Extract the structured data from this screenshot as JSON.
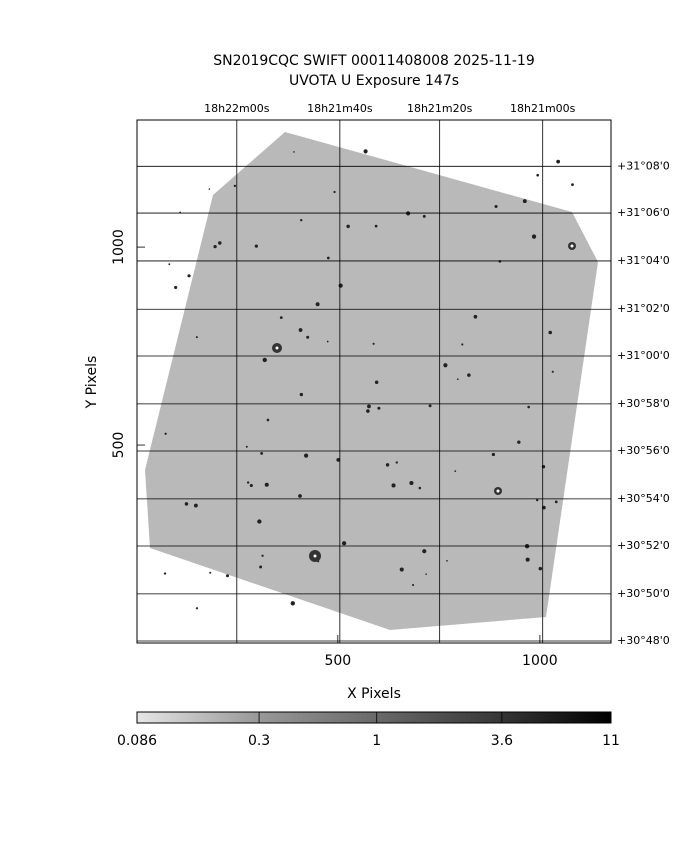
{
  "chart_data": {
    "type": "image",
    "title": "SN2019CQC SWIFT 00011408008 2025-11-19",
    "subtitle": "UVOTA U Exposure        147s",
    "x_label": "X Pixels",
    "y_label": "Y Pixels",
    "xlim": [
      3,
      1176
    ],
    "ylim": [
      0,
      1321
    ],
    "xticks": [
      500,
      1000
    ],
    "yticks": [
      500,
      1000
    ],
    "top_ticks": [
      {
        "value": 250,
        "label": "18h22m00s"
      },
      {
        "value": 505,
        "label": "18h21m40s"
      },
      {
        "value": 752,
        "label": "18h21m20s"
      },
      {
        "value": 1007,
        "label": "18h21m00s"
      }
    ],
    "right_ticks": [
      {
        "value": 1204,
        "label": "+31°08'0"
      },
      {
        "value": 1086,
        "label": "+31°06'0"
      },
      {
        "value": 965,
        "label": "+31°04'0"
      },
      {
        "value": 843,
        "label": "+31°02'0"
      },
      {
        "value": 725,
        "label": "+31°00'0"
      },
      {
        "value": 604,
        "label": "+30°58'0"
      },
      {
        "value": 485,
        "label": "+30°56'0"
      },
      {
        "value": 364,
        "label": "+30°54'0"
      },
      {
        "value": 245,
        "label": "+30°52'0"
      },
      {
        "value": 124,
        "label": "+30°50'0"
      },
      {
        "value": 5,
        "label": "+30°48'0"
      }
    ],
    "colorbar": {
      "log": true,
      "lim": [
        0.086,
        11
      ],
      "ticks": [
        0.086,
        0.3,
        1,
        3.6,
        11
      ]
    },
    "grid": true
  }
}
